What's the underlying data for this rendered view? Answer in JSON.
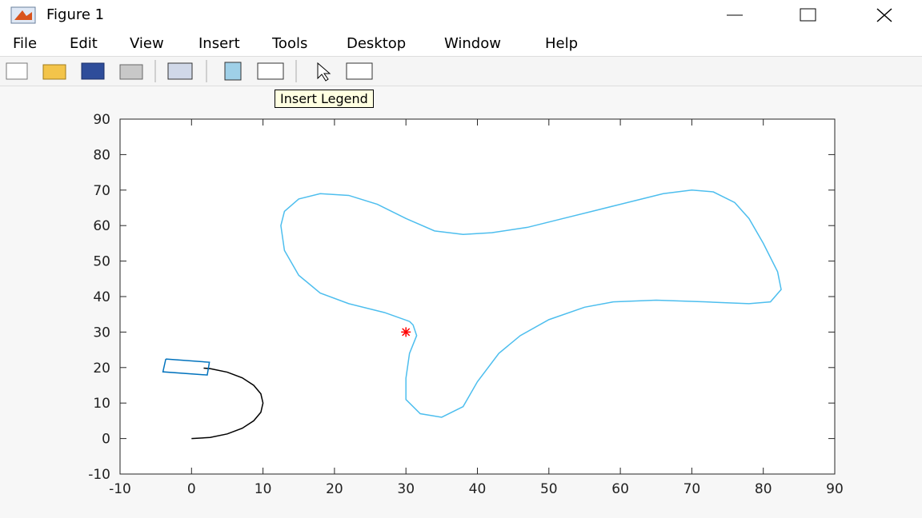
{
  "window": {
    "title": "Figure 1"
  },
  "menu": [
    "File",
    "Edit",
    "View",
    "Insert",
    "Tools",
    "Desktop",
    "Window",
    "Help"
  ],
  "tooltip": "Insert Legend",
  "chart_data": {
    "type": "line",
    "xlim": [
      -10,
      90
    ],
    "ylim": [
      -10,
      90
    ],
    "xticks": [
      -10,
      0,
      10,
      20,
      30,
      40,
      50,
      60,
      70,
      80,
      90
    ],
    "yticks": [
      -10,
      0,
      10,
      20,
      30,
      40,
      50,
      60,
      70,
      80,
      90
    ],
    "series": [
      {
        "color": "#4dbeee",
        "x": [
          30.5,
          27,
          22,
          18,
          15,
          13,
          12.5,
          13,
          15,
          18,
          22,
          26,
          30,
          34,
          38,
          42,
          47,
          52,
          57,
          62,
          66,
          70,
          73,
          76,
          78,
          80,
          82,
          82.5,
          81,
          78,
          72,
          65,
          59,
          55,
          50,
          46,
          43,
          40,
          38,
          35,
          32,
          30,
          30,
          30.5,
          31.5,
          31,
          30.5
        ],
        "y": [
          33,
          35.5,
          38,
          41,
          46,
          53,
          60,
          64,
          67.5,
          69,
          68.5,
          66,
          62,
          58.5,
          57.5,
          58,
          59.5,
          62,
          64.5,
          67,
          69,
          70,
          69.5,
          66.5,
          62,
          55,
          47,
          42,
          38.5,
          38,
          38.5,
          39,
          38.5,
          37,
          33.5,
          29,
          24,
          16,
          9,
          6,
          7,
          11,
          17,
          24,
          29,
          32,
          33
        ]
      },
      {
        "color": "#000000",
        "x": [
          0,
          2.6,
          5,
          7.1,
          8.7,
          9.7,
          10,
          9.7,
          8.7,
          7.1,
          5,
          2.6,
          1.7
        ],
        "y": [
          0,
          0.3,
          1.3,
          2.9,
          5,
          7.4,
          10,
          12.6,
          15,
          17.1,
          18.7,
          19.7,
          19.85
        ]
      },
      {
        "color": "#0072bd",
        "x": [
          -3.6,
          2.5,
          2.2,
          -4,
          -3.6
        ],
        "y": [
          22.4,
          21.5,
          17.9,
          18.8,
          22.4
        ]
      },
      {
        "color": "#ff0000",
        "marker": "*",
        "x": [
          30
        ],
        "y": [
          30
        ]
      }
    ]
  }
}
